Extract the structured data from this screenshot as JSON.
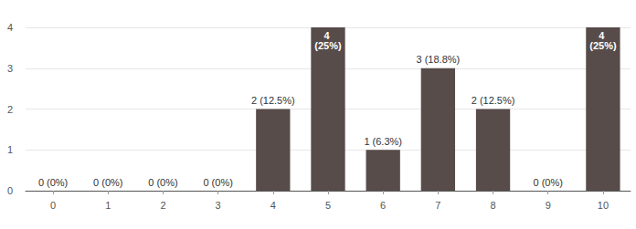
{
  "chart_data": {
    "type": "bar",
    "categories": [
      "0",
      "1",
      "2",
      "3",
      "4",
      "5",
      "6",
      "7",
      "8",
      "9",
      "10"
    ],
    "values": [
      0,
      0,
      0,
      0,
      2,
      4,
      1,
      3,
      2,
      0,
      4
    ],
    "value_labels": [
      "0 (0%)",
      "0 (0%)",
      "0 (0%)",
      "0 (0%)",
      "2 (12.5%)",
      "4 (25%)",
      "1 (6.3%)",
      "3 (18.8%)",
      "2 (12.5%)",
      "0 (0%)",
      "4 (25%)"
    ],
    "color": "#574c4a",
    "ylim": [
      0,
      4
    ],
    "yticks": [
      0,
      1,
      2,
      3,
      4
    ],
    "grid": true,
    "data_labels": true
  }
}
